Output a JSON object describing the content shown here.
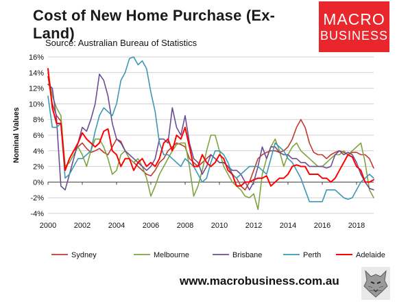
{
  "title": "Cost of New Home Purchase (Ex-Land)",
  "source": "Source: Australian Bureau of Statistics",
  "brand": {
    "line1": "MACRO",
    "line2": "BUSINESS"
  },
  "footer": {
    "url": "www.macrobusiness.com.au"
  },
  "colors": {
    "Sydney": "#c0392b",
    "Melbourne": "#7fa23f",
    "Brisbane": "#6a4c93",
    "Perth": "#3a97b5",
    "Adelaide": "#ff0000",
    "brand_red": "#e8262b"
  },
  "chart_data": {
    "type": "line",
    "title": "Cost of New Home Purchase (Ex-Land)",
    "subtitle": "Source: Australian Bureau of Statistics",
    "xlabel": "",
    "ylabel": "Nominal Values",
    "xlim": [
      2000,
      2019
    ],
    "ylim": [
      -4,
      16
    ],
    "x_ticks": [
      2000,
      2002,
      2004,
      2006,
      2008,
      2010,
      2012,
      2014,
      2016,
      2018
    ],
    "y_ticks": [
      -4,
      -2,
      0,
      2,
      4,
      6,
      8,
      10,
      12,
      14,
      16
    ],
    "y_tick_labels": [
      "-4%",
      "-2%",
      "0%",
      "2%",
      "4%",
      "6%",
      "8%",
      "10%",
      "12%",
      "14%",
      "16%"
    ],
    "grid": "horizontal",
    "legend_position": "bottom",
    "series": [
      {
        "name": "Sydney",
        "x": [
          2000,
          2000.25,
          2000.5,
          2000.75,
          2001,
          2001.25,
          2001.5,
          2001.75,
          2002,
          2002.25,
          2002.5,
          2002.75,
          2003,
          2003.25,
          2003.5,
          2003.75,
          2004,
          2004.25,
          2004.5,
          2004.75,
          2005,
          2005.25,
          2005.5,
          2005.75,
          2006,
          2006.25,
          2006.5,
          2006.75,
          2007,
          2007.25,
          2007.5,
          2007.75,
          2008,
          2008.25,
          2008.5,
          2008.75,
          2009,
          2009.25,
          2009.5,
          2009.75,
          2010,
          2010.25,
          2010.5,
          2010.75,
          2011,
          2011.25,
          2011.5,
          2011.75,
          2012,
          2012.25,
          2012.5,
          2012.75,
          2013,
          2013.25,
          2013.5,
          2013.75,
          2014,
          2014.25,
          2014.5,
          2014.75,
          2015,
          2015.25,
          2015.5,
          2015.75,
          2016,
          2016.25,
          2016.5,
          2016.75,
          2017,
          2017.25,
          2017.5,
          2017.75,
          2018,
          2018.25,
          2018.5,
          2018.75,
          2019
        ],
        "values": [
          13.5,
          10.0,
          8.5,
          7.8,
          1.5,
          3.0,
          4.0,
          4.5,
          5.0,
          4.3,
          3.8,
          4.0,
          4.3,
          3.8,
          3.5,
          4.5,
          5.5,
          5.2,
          4.0,
          3.0,
          2.5,
          2.0,
          1.5,
          1.0,
          0.8,
          1.5,
          2.5,
          3.0,
          4.0,
          4.5,
          5.0,
          4.8,
          4.5,
          3.0,
          2.5,
          2.0,
          2.5,
          3.0,
          3.5,
          3.0,
          2.5,
          2.5,
          2.0,
          1.0,
          0.5,
          -0.5,
          -1.0,
          0.0,
          1.5,
          3.0,
          3.5,
          3.8,
          4.0,
          4.0,
          3.8,
          4.0,
          4.5,
          5.5,
          7.0,
          8.0,
          7.0,
          5.0,
          3.8,
          3.5,
          3.5,
          3.0,
          3.5,
          3.8,
          4.0,
          3.8,
          3.5,
          3.8,
          3.8,
          3.5,
          3.5,
          3.0,
          1.8
        ]
      },
      {
        "name": "Melbourne",
        "x": [
          2000,
          2000.25,
          2000.5,
          2000.75,
          2001,
          2001.25,
          2001.5,
          2001.75,
          2002,
          2002.25,
          2002.5,
          2002.75,
          2003,
          2003.25,
          2003.5,
          2003.75,
          2004,
          2004.25,
          2004.5,
          2004.75,
          2005,
          2005.25,
          2005.5,
          2005.75,
          2006,
          2006.25,
          2006.5,
          2006.75,
          2007,
          2007.25,
          2007.5,
          2007.75,
          2008,
          2008.25,
          2008.5,
          2008.75,
          2009,
          2009.25,
          2009.5,
          2009.75,
          2010,
          2010.25,
          2010.5,
          2010.75,
          2011,
          2011.25,
          2011.5,
          2011.75,
          2012,
          2012.25,
          2012.5,
          2012.75,
          2013,
          2013.25,
          2013.5,
          2013.75,
          2014,
          2014.25,
          2014.5,
          2014.75,
          2015,
          2015.25,
          2015.5,
          2015.75,
          2016,
          2016.25,
          2016.5,
          2016.75,
          2017,
          2017.25,
          2017.5,
          2017.75,
          2018,
          2018.25,
          2018.5,
          2018.75,
          2019
        ],
        "values": [
          14.0,
          11.0,
          9.5,
          8.5,
          2.0,
          2.5,
          3.5,
          4.5,
          3.5,
          2.0,
          4.0,
          5.5,
          5.5,
          4.5,
          3.0,
          1.0,
          1.5,
          3.5,
          4.0,
          3.0,
          2.5,
          3.0,
          2.0,
          0.5,
          -1.8,
          -0.5,
          1.0,
          2.0,
          3.0,
          4.0,
          4.8,
          5.0,
          5.0,
          2.0,
          -1.8,
          -0.5,
          1.5,
          4.0,
          6.0,
          6.0,
          4.0,
          2.0,
          1.0,
          0.0,
          -0.5,
          -1.0,
          -1.8,
          -2.0,
          -1.5,
          -3.5,
          1.0,
          3.0,
          4.5,
          5.5,
          4.0,
          2.0,
          3.5,
          4.5,
          5.0,
          4.0,
          3.5,
          3.0,
          2.5,
          2.0,
          2.0,
          2.5,
          3.0,
          3.5,
          3.5,
          4.0,
          3.5,
          4.0,
          4.5,
          5.0,
          2.5,
          -1.0,
          -2.0
        ]
      },
      {
        "name": "Brisbane",
        "x": [
          2000,
          2000.25,
          2000.5,
          2000.75,
          2001,
          2001.25,
          2001.5,
          2001.75,
          2002,
          2002.25,
          2002.5,
          2002.75,
          2003,
          2003.25,
          2003.5,
          2003.75,
          2004,
          2004.25,
          2004.5,
          2004.75,
          2005,
          2005.25,
          2005.5,
          2005.75,
          2006,
          2006.25,
          2006.5,
          2006.75,
          2007,
          2007.25,
          2007.5,
          2007.75,
          2008,
          2008.25,
          2008.5,
          2008.75,
          2009,
          2009.25,
          2009.5,
          2009.75,
          2010,
          2010.25,
          2010.5,
          2010.75,
          2011,
          2011.25,
          2011.5,
          2011.75,
          2012,
          2012.25,
          2012.5,
          2012.75,
          2013,
          2013.25,
          2013.5,
          2013.75,
          2014,
          2014.25,
          2014.5,
          2014.75,
          2015,
          2015.25,
          2015.5,
          2015.75,
          2016,
          2016.25,
          2016.5,
          2016.75,
          2017,
          2017.25,
          2017.5,
          2017.75,
          2018,
          2018.25,
          2018.5,
          2018.75,
          2019
        ],
        "values": [
          12.5,
          12.0,
          8.0,
          -0.5,
          -1.0,
          1.0,
          3.0,
          5.0,
          7.0,
          6.5,
          8.0,
          10.0,
          13.8,
          13.0,
          11.0,
          7.5,
          5.5,
          5.0,
          4.0,
          3.5,
          3.0,
          2.5,
          2.0,
          1.5,
          2.0,
          3.0,
          5.5,
          5.5,
          5.0,
          9.5,
          7.0,
          6.0,
          8.5,
          5.0,
          3.0,
          2.5,
          1.0,
          2.0,
          3.5,
          3.0,
          2.5,
          2.5,
          2.0,
          1.5,
          1.5,
          1.0,
          0.0,
          -1.0,
          0.0,
          2.0,
          4.5,
          3.0,
          4.5,
          4.5,
          3.8,
          3.5,
          3.5,
          3.0,
          3.0,
          2.5,
          2.5,
          2.0,
          2.0,
          2.0,
          2.0,
          1.8,
          2.0,
          3.5,
          4.0,
          3.5,
          3.8,
          3.5,
          2.5,
          1.0,
          0.0,
          -0.8,
          -1.0
        ]
      },
      {
        "name": "Perth",
        "x": [
          2000,
          2000.25,
          2000.5,
          2000.75,
          2001,
          2001.25,
          2001.5,
          2001.75,
          2002,
          2002.25,
          2002.5,
          2002.75,
          2003,
          2003.25,
          2003.5,
          2003.75,
          2004,
          2004.25,
          2004.5,
          2004.75,
          2005,
          2005.25,
          2005.5,
          2005.75,
          2006,
          2006.25,
          2006.5,
          2006.75,
          2007,
          2007.25,
          2007.5,
          2007.75,
          2008,
          2008.25,
          2008.5,
          2008.75,
          2009,
          2009.25,
          2009.5,
          2009.75,
          2010,
          2010.25,
          2010.5,
          2010.75,
          2011,
          2011.25,
          2011.5,
          2011.75,
          2012,
          2012.25,
          2012.5,
          2012.75,
          2013,
          2013.25,
          2013.5,
          2013.75,
          2014,
          2014.25,
          2014.5,
          2014.75,
          2015,
          2015.25,
          2015.5,
          2015.75,
          2016,
          2016.25,
          2016.5,
          2016.75,
          2017,
          2017.25,
          2017.5,
          2017.75,
          2018,
          2018.25,
          2018.5,
          2018.75,
          2019
        ],
        "values": [
          11.0,
          7.0,
          7.0,
          7.5,
          0.5,
          1.0,
          2.0,
          3.0,
          3.0,
          3.5,
          4.0,
          6.5,
          8.5,
          9.5,
          9.0,
          8.5,
          10.0,
          13.0,
          14.0,
          15.8,
          16.0,
          15.0,
          15.5,
          14.5,
          11.5,
          9.0,
          5.0,
          3.5,
          3.5,
          3.0,
          2.5,
          2.0,
          3.0,
          2.5,
          2.0,
          1.0,
          0.0,
          0.5,
          2.5,
          4.0,
          4.0,
          3.5,
          2.5,
          1.0,
          0.5,
          1.0,
          1.5,
          2.0,
          2.0,
          2.0,
          1.5,
          1.0,
          3.0,
          5.0,
          4.5,
          4.0,
          3.0,
          2.5,
          1.5,
          0.5,
          -1.0,
          -2.5,
          -2.5,
          -2.5,
          -2.5,
          -1.0,
          -1.0,
          -1.0,
          -1.5,
          -2.0,
          -2.2,
          -2.0,
          -1.0,
          0.0,
          0.5,
          1.0,
          0.5
        ]
      },
      {
        "name": "Adelaide",
        "x": [
          2000,
          2000.25,
          2000.5,
          2000.75,
          2001,
          2001.25,
          2001.5,
          2001.75,
          2002,
          2002.25,
          2002.5,
          2002.75,
          2003,
          2003.25,
          2003.5,
          2003.75,
          2004,
          2004.25,
          2004.5,
          2004.75,
          2005,
          2005.25,
          2005.5,
          2005.75,
          2006,
          2006.25,
          2006.5,
          2006.75,
          2007,
          2007.25,
          2007.5,
          2007.75,
          2008,
          2008.25,
          2008.5,
          2008.75,
          2009,
          2009.25,
          2009.5,
          2009.75,
          2010,
          2010.25,
          2010.5,
          2010.75,
          2011,
          2011.25,
          2011.5,
          2011.75,
          2012,
          2012.25,
          2012.5,
          2012.75,
          2013,
          2013.25,
          2013.5,
          2013.75,
          2014,
          2014.25,
          2014.5,
          2014.75,
          2015,
          2015.25,
          2015.5,
          2015.75,
          2016,
          2016.25,
          2016.5,
          2016.75,
          2017,
          2017.25,
          2017.5,
          2017.75,
          2018,
          2018.25,
          2018.5,
          2018.75,
          2019
        ],
        "values": [
          14.5,
          9.5,
          7.5,
          7.5,
          1.5,
          3.0,
          4.0,
          5.0,
          6.3,
          5.5,
          5.0,
          4.5,
          5.0,
          6.5,
          6.8,
          4.0,
          3.5,
          2.0,
          3.0,
          3.0,
          1.5,
          2.5,
          3.0,
          2.0,
          2.5,
          2.0,
          3.0,
          5.0,
          5.5,
          4.0,
          6.0,
          5.5,
          7.0,
          4.5,
          2.0,
          2.0,
          3.5,
          2.5,
          2.0,
          2.5,
          3.5,
          3.0,
          1.5,
          1.0,
          -0.5,
          -0.5,
          0.0,
          0.0,
          0.3,
          0.5,
          0.5,
          0.8,
          -0.5,
          0.0,
          0.5,
          0.5,
          1.0,
          2.0,
          2.2,
          2.0,
          2.0,
          1.0,
          1.0,
          1.0,
          0.5,
          0.5,
          0.0,
          0.5,
          1.5,
          2.5,
          3.5,
          3.2,
          2.0,
          1.5,
          0.0,
          0.0,
          0.3
        ]
      }
    ]
  }
}
